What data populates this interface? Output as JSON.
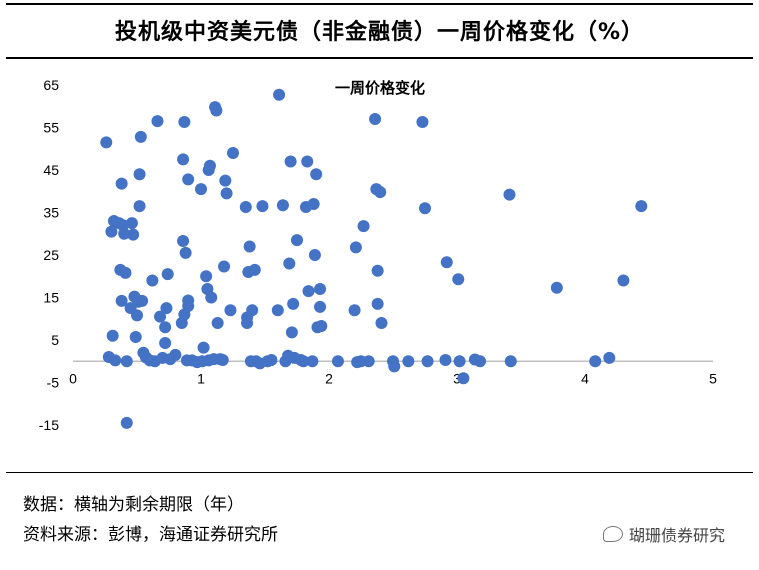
{
  "title": "投机级中资美元债（非金融债）一周价格变化（%）",
  "footnotes": {
    "line1": "数据：横轴为剩余期限（年）",
    "line2": "资料来源：彭博，海通证券研究所"
  },
  "watermark": "瑚珊债券研究",
  "colors": {
    "marker": "#4472C4",
    "axis": "#BFBFBF"
  },
  "chart_data": {
    "type": "scatter",
    "title": "一周价格变化",
    "xlabel": "",
    "ylabel": "",
    "xlim": [
      0,
      5
    ],
    "ylim": [
      -15,
      65
    ],
    "x_ticks": [
      "0",
      "1",
      "2",
      "3",
      "4",
      "5"
    ],
    "y_ticks": [
      "65",
      "55",
      "45",
      "35",
      "25",
      "15",
      "5",
      "-5",
      "-15"
    ],
    "grid": false,
    "points": [
      [
        0.26,
        51.5
      ],
      [
        0.28,
        1.0
      ],
      [
        0.3,
        30.5
      ],
      [
        0.31,
        6.0
      ],
      [
        0.32,
        33.0
      ],
      [
        0.33,
        0.2
      ],
      [
        0.36,
        32.5
      ],
      [
        0.37,
        21.5
      ],
      [
        0.38,
        14.2
      ],
      [
        0.38,
        41.8
      ],
      [
        0.39,
        32.0
      ],
      [
        0.4,
        30.0
      ],
      [
        0.41,
        20.8
      ],
      [
        0.42,
        -14.5
      ],
      [
        0.42,
        0.0
      ],
      [
        0.45,
        12.5
      ],
      [
        0.46,
        32.5
      ],
      [
        0.47,
        29.8
      ],
      [
        0.48,
        15.2
      ],
      [
        0.49,
        5.7
      ],
      [
        0.5,
        10.8
      ],
      [
        0.51,
        14.0
      ],
      [
        0.52,
        36.5
      ],
      [
        0.52,
        44.0
      ],
      [
        0.53,
        52.8
      ],
      [
        0.54,
        14.2
      ],
      [
        0.55,
        2.0
      ],
      [
        0.57,
        0.9
      ],
      [
        0.6,
        0.2
      ],
      [
        0.62,
        19.0
      ],
      [
        0.64,
        0.0
      ],
      [
        0.66,
        56.5
      ],
      [
        0.68,
        10.5
      ],
      [
        0.7,
        0.8
      ],
      [
        0.72,
        4.3
      ],
      [
        0.72,
        8.0
      ],
      [
        0.73,
        12.5
      ],
      [
        0.74,
        20.5
      ],
      [
        0.76,
        0.5
      ],
      [
        0.8,
        1.5
      ],
      [
        0.85,
        9.0
      ],
      [
        0.86,
        28.3
      ],
      [
        0.86,
        47.5
      ],
      [
        0.87,
        11.0
      ],
      [
        0.87,
        56.3
      ],
      [
        0.88,
        25.5
      ],
      [
        0.89,
        0.2
      ],
      [
        0.9,
        14.3
      ],
      [
        0.9,
        13.0
      ],
      [
        0.9,
        42.8
      ],
      [
        0.93,
        0.2
      ],
      [
        0.97,
        -0.2
      ],
      [
        1.0,
        40.5
      ],
      [
        1.01,
        0.0
      ],
      [
        1.02,
        3.2
      ],
      [
        1.04,
        20.0
      ],
      [
        1.05,
        17.0
      ],
      [
        1.06,
        45.0
      ],
      [
        1.06,
        0.2
      ],
      [
        1.07,
        46.0
      ],
      [
        1.08,
        15.0
      ],
      [
        1.1,
        0.5
      ],
      [
        1.11,
        59.8
      ],
      [
        1.12,
        59.0
      ],
      [
        1.13,
        9.0
      ],
      [
        1.15,
        0.5
      ],
      [
        1.17,
        0.3
      ],
      [
        1.18,
        22.3
      ],
      [
        1.19,
        42.5
      ],
      [
        1.2,
        39.5
      ],
      [
        1.23,
        12.0
      ],
      [
        1.25,
        49.0
      ],
      [
        1.35,
        36.3
      ],
      [
        1.36,
        10.3
      ],
      [
        1.36,
        9.0
      ],
      [
        1.37,
        21.0
      ],
      [
        1.38,
        27.0
      ],
      [
        1.39,
        0.0
      ],
      [
        1.4,
        12.0
      ],
      [
        1.42,
        21.5
      ],
      [
        1.43,
        0.0
      ],
      [
        1.46,
        -0.5
      ],
      [
        1.48,
        36.5
      ],
      [
        1.52,
        0.0
      ],
      [
        1.55,
        0.3
      ],
      [
        1.6,
        12.0
      ],
      [
        1.61,
        62.7
      ],
      [
        1.64,
        36.7
      ],
      [
        1.66,
        0.0
      ],
      [
        1.68,
        1.3
      ],
      [
        1.69,
        23.0
      ],
      [
        1.7,
        47.0
      ],
      [
        1.71,
        6.8
      ],
      [
        1.72,
        13.5
      ],
      [
        1.73,
        0.8
      ],
      [
        1.75,
        28.5
      ],
      [
        1.78,
        0.3
      ],
      [
        1.8,
        0.0
      ],
      [
        1.82,
        36.3
      ],
      [
        1.83,
        47.0
      ],
      [
        1.84,
        16.5
      ],
      [
        1.87,
        0.0
      ],
      [
        1.88,
        37.0
      ],
      [
        1.89,
        25.0
      ],
      [
        1.9,
        44.0
      ],
      [
        1.91,
        8.0
      ],
      [
        1.93,
        12.8
      ],
      [
        1.93,
        17.0
      ],
      [
        1.94,
        8.3
      ],
      [
        2.07,
        0.0
      ],
      [
        2.2,
        12.0
      ],
      [
        2.21,
        26.8
      ],
      [
        2.22,
        -0.2
      ],
      [
        2.25,
        0.0
      ],
      [
        2.27,
        31.8
      ],
      [
        2.31,
        0.0
      ],
      [
        2.36,
        57.0
      ],
      [
        2.37,
        40.5
      ],
      [
        2.38,
        21.3
      ],
      [
        2.38,
        13.5
      ],
      [
        2.4,
        39.8
      ],
      [
        2.41,
        9.0
      ],
      [
        2.5,
        0.0
      ],
      [
        2.51,
        -1.2
      ],
      [
        2.62,
        0.0
      ],
      [
        2.73,
        56.3
      ],
      [
        2.75,
        36.0
      ],
      [
        2.77,
        0.0
      ],
      [
        2.91,
        0.3
      ],
      [
        2.92,
        23.3
      ],
      [
        3.01,
        19.3
      ],
      [
        3.02,
        0.0
      ],
      [
        3.05,
        -4.0
      ],
      [
        3.14,
        0.4
      ],
      [
        3.18,
        0.0
      ],
      [
        3.41,
        39.2
      ],
      [
        3.42,
        0.0
      ],
      [
        3.78,
        17.3
      ],
      [
        4.08,
        0.0
      ],
      [
        4.19,
        0.8
      ],
      [
        4.3,
        19.0
      ],
      [
        4.44,
        36.5
      ]
    ]
  }
}
